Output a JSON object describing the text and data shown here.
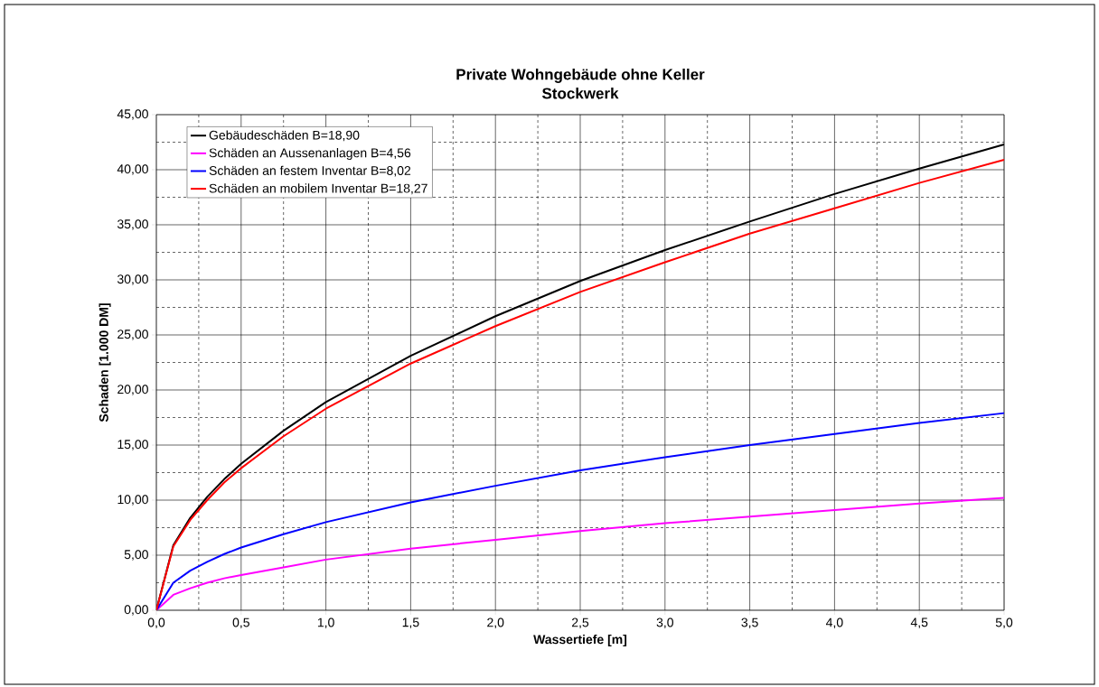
{
  "chart_data": {
    "type": "line",
    "title": "Private Wohngebäude ohne Keller",
    "subtitle": "Stockwerk",
    "xlabel": "Wassertiefe [m]",
    "ylabel": "Schaden [1.000 DM]",
    "x": [
      0,
      0.1,
      0.2,
      0.3,
      0.4,
      0.5,
      0.75,
      1,
      1.5,
      2,
      2.5,
      3,
      3.5,
      4,
      4.5,
      5
    ],
    "series": [
      {
        "name": "Gebäudeschäden B=18,90",
        "color": "#000000",
        "values": [
          0,
          5.9,
          8.4,
          10.3,
          11.9,
          13.3,
          16.3,
          18.9,
          23.1,
          26.7,
          29.9,
          32.7,
          35.3,
          37.8,
          40.1,
          42.3
        ]
      },
      {
        "name": "Schäden an Aussenanlagen B=4,56",
        "color": "#ff00ff",
        "values": [
          0,
          1.4,
          2.0,
          2.5,
          2.9,
          3.2,
          3.9,
          4.6,
          5.6,
          6.4,
          7.2,
          7.9,
          8.5,
          9.1,
          9.7,
          10.2
        ]
      },
      {
        "name": "Schäden an festem Inventar B=8,02",
        "color": "#0000ff",
        "values": [
          0,
          2.5,
          3.6,
          4.4,
          5.1,
          5.7,
          6.9,
          8.0,
          9.8,
          11.3,
          12.7,
          13.9,
          15.0,
          16.0,
          17.0,
          17.9
        ]
      },
      {
        "name": "Schäden an mobilem Inventar B=18,27",
        "color": "#ff0000",
        "values": [
          0,
          5.8,
          8.2,
          10.0,
          11.6,
          12.9,
          15.8,
          18.3,
          22.4,
          25.8,
          28.9,
          31.6,
          34.2,
          36.5,
          38.8,
          40.9
        ]
      }
    ],
    "xlim": [
      0,
      5
    ],
    "ylim": [
      0,
      45
    ],
    "xticks": [
      {
        "value": 0,
        "label": "0,0"
      },
      {
        "value": 0.5,
        "label": "0,5"
      },
      {
        "value": 1,
        "label": "1,0"
      },
      {
        "value": 1.5,
        "label": "1,5"
      },
      {
        "value": 2,
        "label": "2,0"
      },
      {
        "value": 2.5,
        "label": "2,5"
      },
      {
        "value": 3,
        "label": "3,0"
      },
      {
        "value": 3.5,
        "label": "3,5"
      },
      {
        "value": 4,
        "label": "4,0"
      },
      {
        "value": 4.5,
        "label": "4,5"
      },
      {
        "value": 5,
        "label": "5,0"
      }
    ],
    "yticks": [
      {
        "value": 0,
        "label": "0,00"
      },
      {
        "value": 5,
        "label": "5,00"
      },
      {
        "value": 10,
        "label": "10,00"
      },
      {
        "value": 15,
        "label": "15,00"
      },
      {
        "value": 20,
        "label": "20,00"
      },
      {
        "value": 25,
        "label": "25,00"
      },
      {
        "value": 30,
        "label": "30,00"
      },
      {
        "value": 35,
        "label": "35,00"
      },
      {
        "value": 40,
        "label": "40,00"
      },
      {
        "value": 45,
        "label": "45,00"
      }
    ],
    "grid": true,
    "legend": "top left",
    "marker": "none",
    "line_style": "solid"
  }
}
